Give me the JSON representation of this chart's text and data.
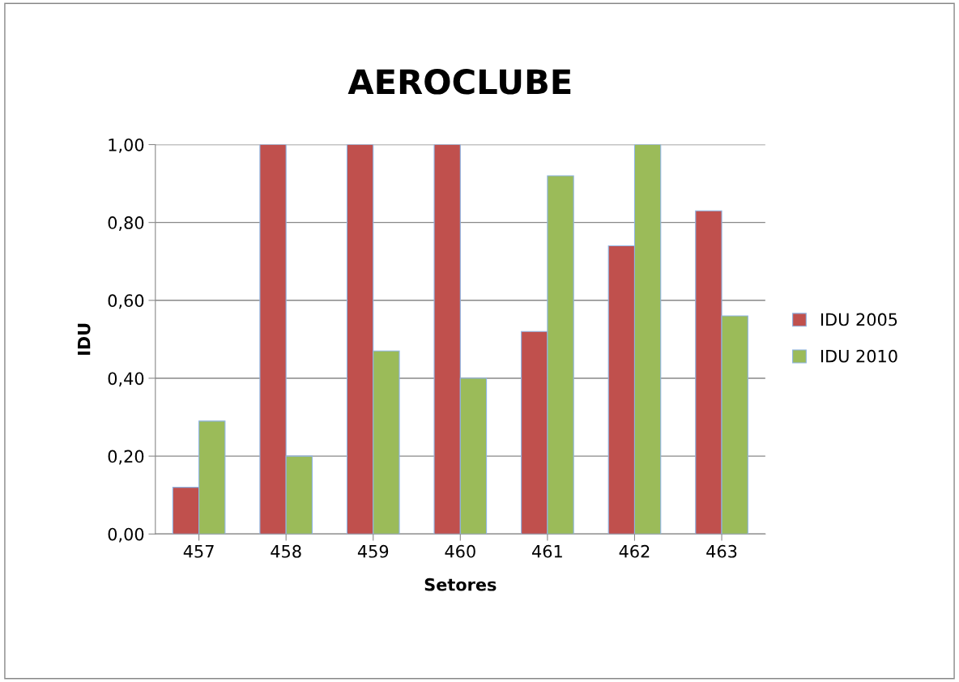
{
  "chart_data": {
    "type": "bar",
    "title": "AEROCLUBE",
    "xlabel": "Setores",
    "ylabel": "IDU",
    "categories": [
      "457",
      "458",
      "459",
      "460",
      "461",
      "462",
      "463"
    ],
    "series": [
      {
        "name": "IDU 2005",
        "color": "#c0504d",
        "values": [
          0.12,
          1.0,
          1.0,
          1.0,
          0.52,
          0.74,
          0.83
        ]
      },
      {
        "name": "IDU 2010",
        "color": "#9bbb59",
        "values": [
          0.29,
          0.2,
          0.47,
          0.4,
          0.92,
          1.0,
          0.56
        ]
      }
    ],
    "ylim": [
      0,
      1.0
    ],
    "yticks": [
      {
        "value": 0,
        "label": "0,00"
      },
      {
        "value": 0.2,
        "label": "0,20"
      },
      {
        "value": 0.4,
        "label": "0,40"
      },
      {
        "value": 0.6,
        "label": "0,60"
      },
      {
        "value": 0.8,
        "label": "0,80"
      },
      {
        "value": 1.0,
        "label": "1,00"
      }
    ],
    "grid": "y",
    "legend": "right"
  }
}
